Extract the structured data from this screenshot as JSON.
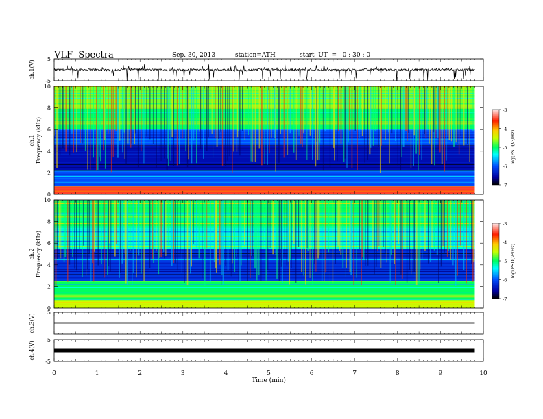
{
  "header": {
    "title": "VLF  Spectra",
    "date": "Sep. 30, 2013",
    "station": "station=ATH",
    "start": "start  UT  =   0 : 30 : 0"
  },
  "chart_data": [
    {
      "type": "line",
      "panel": "ch1",
      "ylabel": "ch.1(V)",
      "ylim": [
        -5,
        5
      ],
      "yticks": [
        "5",
        "-5"
      ],
      "x": [
        0,
        0.5,
        1,
        1.5,
        2,
        2.5,
        3,
        3.5,
        4,
        4.5,
        5,
        5.5,
        6,
        6.5,
        7,
        7.5,
        8,
        8.5,
        9,
        9.8
      ],
      "values": [
        0.0,
        0.1,
        -0.1,
        0.2,
        0.0,
        -0.1,
        0.1,
        0.0,
        -0.2,
        0.1,
        0.0,
        0.1,
        -0.1,
        0.0,
        0.1,
        -0.1,
        0.0,
        0.2,
        0.0,
        0.0
      ],
      "description_trace": "noisy baseline near 0 V with frequent sharp negative spikes"
    },
    {
      "type": "heatmap",
      "panel": "spec1",
      "ylabel": "ch.1\nFrequency  (kHz)",
      "xlim": [
        0,
        10
      ],
      "ylim": [
        0,
        10
      ],
      "yticks": [
        "0",
        "2",
        "4",
        "6",
        "8",
        "10"
      ],
      "colorbar": {
        "label": "log(PSD(V²/Hz)",
        "range": [
          -7,
          -3
        ],
        "ticks": [
          "-3",
          "-4",
          "-5",
          "-6",
          "-7"
        ]
      },
      "bands_khz": [
        {
          "from": 0,
          "to": 0.8,
          "level": -3.5
        },
        {
          "from": 0.8,
          "to": 2.2,
          "level": -6.0
        },
        {
          "from": 2.2,
          "to": 4.5,
          "level": -6.5
        },
        {
          "from": 4.5,
          "to": 6,
          "level": -6.0
        },
        {
          "from": 6,
          "to": 8,
          "level": -5.0
        },
        {
          "from": 8,
          "to": 10,
          "level": -4.7
        }
      ]
    },
    {
      "type": "heatmap",
      "panel": "spec2",
      "ylabel": "ch.2\nFrequency  (kHz)",
      "xlim": [
        0,
        10
      ],
      "ylim": [
        0,
        10
      ],
      "yticks": [
        "0",
        "2",
        "4",
        "6",
        "8",
        "10"
      ],
      "colorbar": {
        "label": "log(PSD(V²/Hz)",
        "range": [
          -7,
          -3
        ],
        "ticks": [
          "-3",
          "-4",
          "-5",
          "-6",
          "-7"
        ]
      },
      "bands_khz": [
        {
          "from": 0,
          "to": 0.8,
          "level": -4.5
        },
        {
          "from": 0.8,
          "to": 2.5,
          "level": -5.0
        },
        {
          "from": 2.5,
          "to": 5.5,
          "level": -6.2
        },
        {
          "from": 5.5,
          "to": 7.5,
          "level": -5.3
        },
        {
          "from": 7.5,
          "to": 10,
          "level": -5.0
        }
      ]
    },
    {
      "type": "line",
      "panel": "ch3",
      "ylabel": "ch.3(V)",
      "ylim": [
        -5,
        5
      ],
      "yticks": [
        "5"
      ],
      "x": [
        0,
        9.8
      ],
      "values": [
        0,
        0
      ]
    },
    {
      "type": "line",
      "panel": "ch4",
      "ylabel": "ch.4(V)",
      "ylim": [
        -5,
        5
      ],
      "yticks": [
        "5",
        "-5"
      ],
      "x": [
        0,
        9.8
      ],
      "values": [
        0,
        0
      ]
    }
  ],
  "xaxis": {
    "label": "Time  (min)",
    "ticks": [
      "0",
      "1",
      "2",
      "3",
      "4",
      "5",
      "6",
      "7",
      "8",
      "9",
      "10"
    ],
    "range": [
      0,
      10
    ],
    "data_end": 9.8
  }
}
